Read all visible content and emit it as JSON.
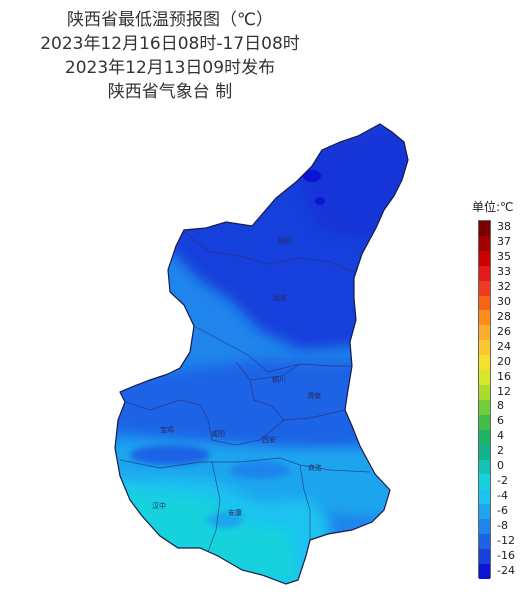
{
  "title": {
    "line1": "陕西省最低温预报图（℃）",
    "line2": "2023年12月16日08时-17日08时",
    "line3": "2023年12月13日09时发布",
    "line4": "陕西省气象台 制"
  },
  "legend": {
    "title": "单位:℃",
    "items": [
      {
        "label": "38",
        "color": "#7a0000"
      },
      {
        "label": "37",
        "color": "#a30000"
      },
      {
        "label": "35",
        "color": "#cc0000"
      },
      {
        "label": "33",
        "color": "#e31a1c"
      },
      {
        "label": "32",
        "color": "#f03b20"
      },
      {
        "label": "30",
        "color": "#f76418"
      },
      {
        "label": "28",
        "color": "#fc8d1a"
      },
      {
        "label": "26",
        "color": "#fdae2d"
      },
      {
        "label": "24",
        "color": "#fdc82f"
      },
      {
        "label": "20",
        "color": "#f5e02e"
      },
      {
        "label": "16",
        "color": "#d7e62b"
      },
      {
        "label": "12",
        "color": "#a8dc2e"
      },
      {
        "label": "8",
        "color": "#72cd38"
      },
      {
        "label": "6",
        "color": "#3fbf4a"
      },
      {
        "label": "4",
        "color": "#1fb366"
      },
      {
        "label": "2",
        "color": "#11b48c"
      },
      {
        "label": "0",
        "color": "#13c3b5"
      },
      {
        "label": "-2",
        "color": "#16d2dd"
      },
      {
        "label": "-4",
        "color": "#1ac3f0"
      },
      {
        "label": "-6",
        "color": "#1da5ee"
      },
      {
        "label": "-8",
        "color": "#1f85ec"
      },
      {
        "label": "-12",
        "color": "#1c63e6"
      },
      {
        "label": "-16",
        "color": "#1840dc"
      },
      {
        "label": "-24",
        "color": "#0a14d2"
      }
    ]
  },
  "map": {
    "region": "陕西省",
    "city_labels": [
      "榆林",
      "延安",
      "铜川",
      "渭南",
      "宝鸡",
      "咸阳",
      "西安",
      "商洛",
      "汉中",
      "安康"
    ],
    "temperature_bands_shown": [
      "-24",
      "-16",
      "-12",
      "-8",
      "-6",
      "-4",
      "-2"
    ]
  }
}
